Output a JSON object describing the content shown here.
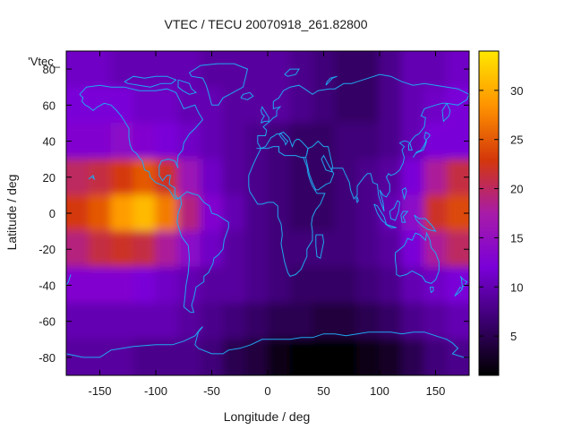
{
  "chart_data": {
    "type": "heatmap",
    "title": "VTEC / TECU 20070918_261.82800",
    "xlabel": "Longitude / deg",
    "ylabel": "Latitude / deg",
    "xlim": [
      -180,
      180
    ],
    "ylim": [
      -90,
      90
    ],
    "x_ticks": [
      "-150",
      "-100",
      "-50",
      "0",
      "50",
      "100",
      "150"
    ],
    "y_ticks": [
      "80",
      "60",
      "40",
      "20",
      "0",
      "-20",
      "-40",
      "-60",
      "-80"
    ],
    "legend_label": "'Vtec_",
    "colorbar": {
      "range": [
        1,
        34
      ],
      "ticks": [
        "5",
        "10",
        "15",
        "20",
        "25",
        "30"
      ],
      "palette": [
        "#000000",
        "#3b006f",
        "#7a00d8",
        "#a81ca8",
        "#d4380a",
        "#ff9400",
        "#ffe800"
      ]
    },
    "value_grid": {
      "lon_centers": [
        -170,
        -150,
        -130,
        -110,
        -90,
        -70,
        -50,
        -30,
        -10,
        10,
        30,
        50,
        70,
        90,
        110,
        130,
        150,
        170
      ],
      "lat_centers": [
        80,
        60,
        40,
        20,
        0,
        -20,
        -40,
        -60,
        -80
      ],
      "values": [
        [
          11,
          11,
          10,
          10,
          10,
          10,
          9,
          9,
          9,
          9,
          8,
          7,
          6,
          6,
          8,
          10,
          10,
          11
        ],
        [
          12,
          12,
          12,
          11,
          11,
          10,
          10,
          9,
          9,
          9,
          8,
          7,
          6,
          6,
          8,
          10,
          11,
          12
        ],
        [
          13,
          13,
          14,
          13,
          12,
          11,
          10,
          9,
          8,
          7,
          6,
          6,
          7,
          7,
          8,
          10,
          12,
          12
        ],
        [
          20,
          21,
          23,
          25,
          22,
          16,
          11,
          9,
          8,
          7,
          6,
          6,
          7,
          8,
          9,
          12,
          18,
          21
        ],
        [
          23,
          25,
          29,
          31,
          27,
          19,
          13,
          10,
          8,
          7,
          6,
          6,
          7,
          8,
          10,
          14,
          22,
          24
        ],
        [
          19,
          21,
          22,
          21,
          18,
          14,
          11,
          9,
          8,
          7,
          7,
          7,
          7,
          8,
          9,
          12,
          18,
          20
        ],
        [
          13,
          13,
          13,
          12,
          11,
          10,
          9,
          9,
          8,
          7,
          6,
          6,
          6,
          7,
          8,
          10,
          11,
          12
        ],
        [
          10,
          10,
          10,
          10,
          10,
          9,
          8,
          7,
          6,
          5,
          5,
          4,
          4,
          5,
          6,
          8,
          9,
          10
        ],
        [
          9,
          9,
          9,
          8,
          8,
          8,
          7,
          5,
          4,
          2,
          1,
          1,
          1,
          2,
          3,
          5,
          7,
          8
        ]
      ]
    }
  }
}
